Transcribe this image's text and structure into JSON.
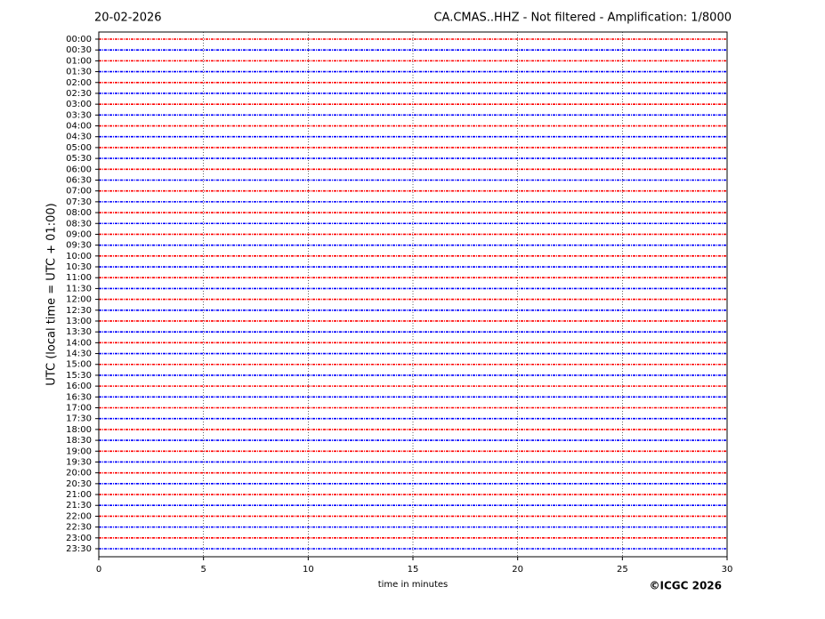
{
  "chart_data": {
    "type": "helicorder",
    "date": "20-02-2026",
    "title": "CA.CMAS..HHZ - Not filtered - Amplification: 1/8000",
    "ylabel": "UTC (local time = UTC + 01:00)",
    "xlabel": "time in minutes",
    "credit": "©ICGC 2026",
    "categories": [
      "00:00",
      "00:30",
      "01:00",
      "01:30",
      "02:00",
      "02:30",
      "03:00",
      "03:30",
      "04:00",
      "04:30",
      "05:00",
      "05:30",
      "06:00",
      "06:30",
      "07:00",
      "07:30",
      "08:00",
      "08:30",
      "09:00",
      "09:30",
      "10:00",
      "10:30",
      "11:00",
      "11:30",
      "12:00",
      "12:30",
      "13:00",
      "13:30",
      "14:00",
      "14:30",
      "15:00",
      "15:30",
      "16:00",
      "16:30",
      "17:00",
      "17:30",
      "18:00",
      "18:30",
      "19:00",
      "19:30",
      "20:00",
      "20:30",
      "21:00",
      "21:30",
      "22:00",
      "22:30",
      "23:00",
      "23:30"
    ],
    "trace_colors": [
      "#ff0000",
      "#0000ff"
    ],
    "xlim": [
      0,
      30
    ],
    "xticks": [
      0,
      5,
      10,
      15,
      20,
      25,
      30
    ],
    "grid": true
  }
}
